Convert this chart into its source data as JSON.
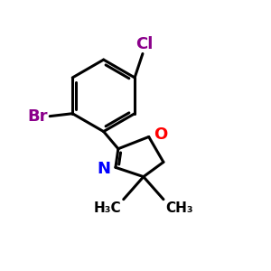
{
  "background_color": "#ffffff",
  "bond_color": "#000000",
  "bond_width": 2.2,
  "atom_colors": {
    "Cl": "#8B008B",
    "Br": "#8B008B",
    "N": "#0000FF",
    "O": "#FF0000"
  },
  "font_size_element": 13,
  "font_size_methyl": 11,
  "figsize": [
    3.0,
    3.0
  ],
  "dpi": 100
}
